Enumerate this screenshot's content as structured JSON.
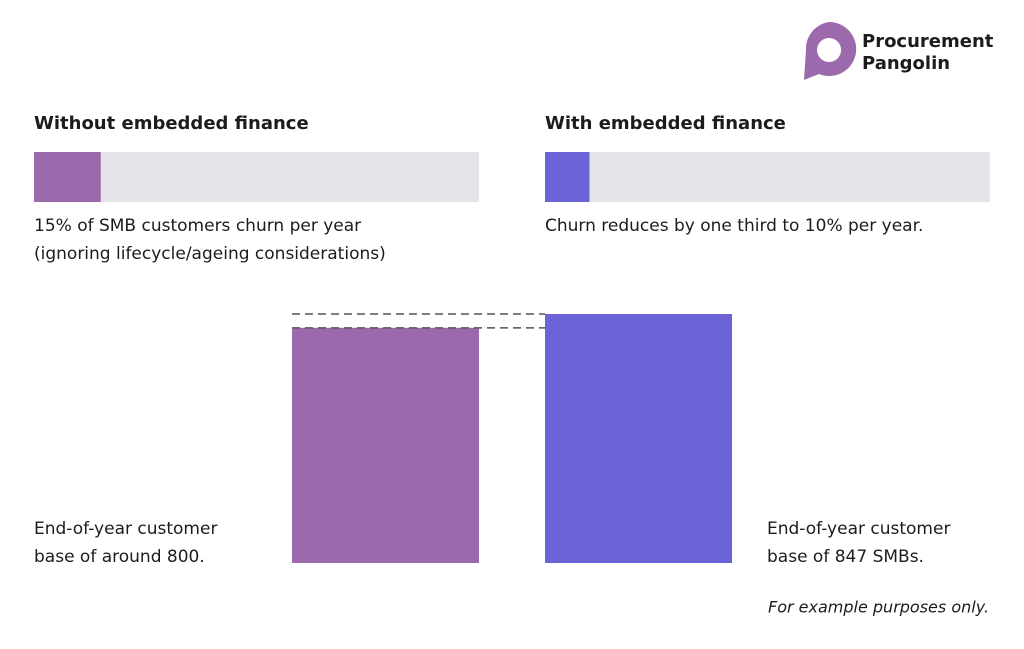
{
  "logo": {
    "lines": [
      "Procurement",
      "Pangolin"
    ],
    "color": "#9c69ad"
  },
  "churn_xlim": [
    0,
    100
  ],
  "panels": [
    {
      "title": "Without embedded finance",
      "churn_rate": 15,
      "color": "#9c69ad",
      "caption_lines": [
        "15% of SMB customers churn per year",
        "(ignoring lifecycle/ageing considerations)"
      ],
      "customer_base": 800,
      "base_caption_lines": [
        "End-of-year customer",
        "base of around 800."
      ]
    },
    {
      "title": "With embedded finance",
      "churn_rate": 10,
      "color": "#6c63d6",
      "caption_lines": [
        "Churn reduces by one third to 10% per year."
      ],
      "customer_base": 847,
      "base_caption_lines": [
        "End-of-year customer",
        "base of 847 SMBs."
      ]
    }
  ],
  "footnote": "For example purposes only."
}
